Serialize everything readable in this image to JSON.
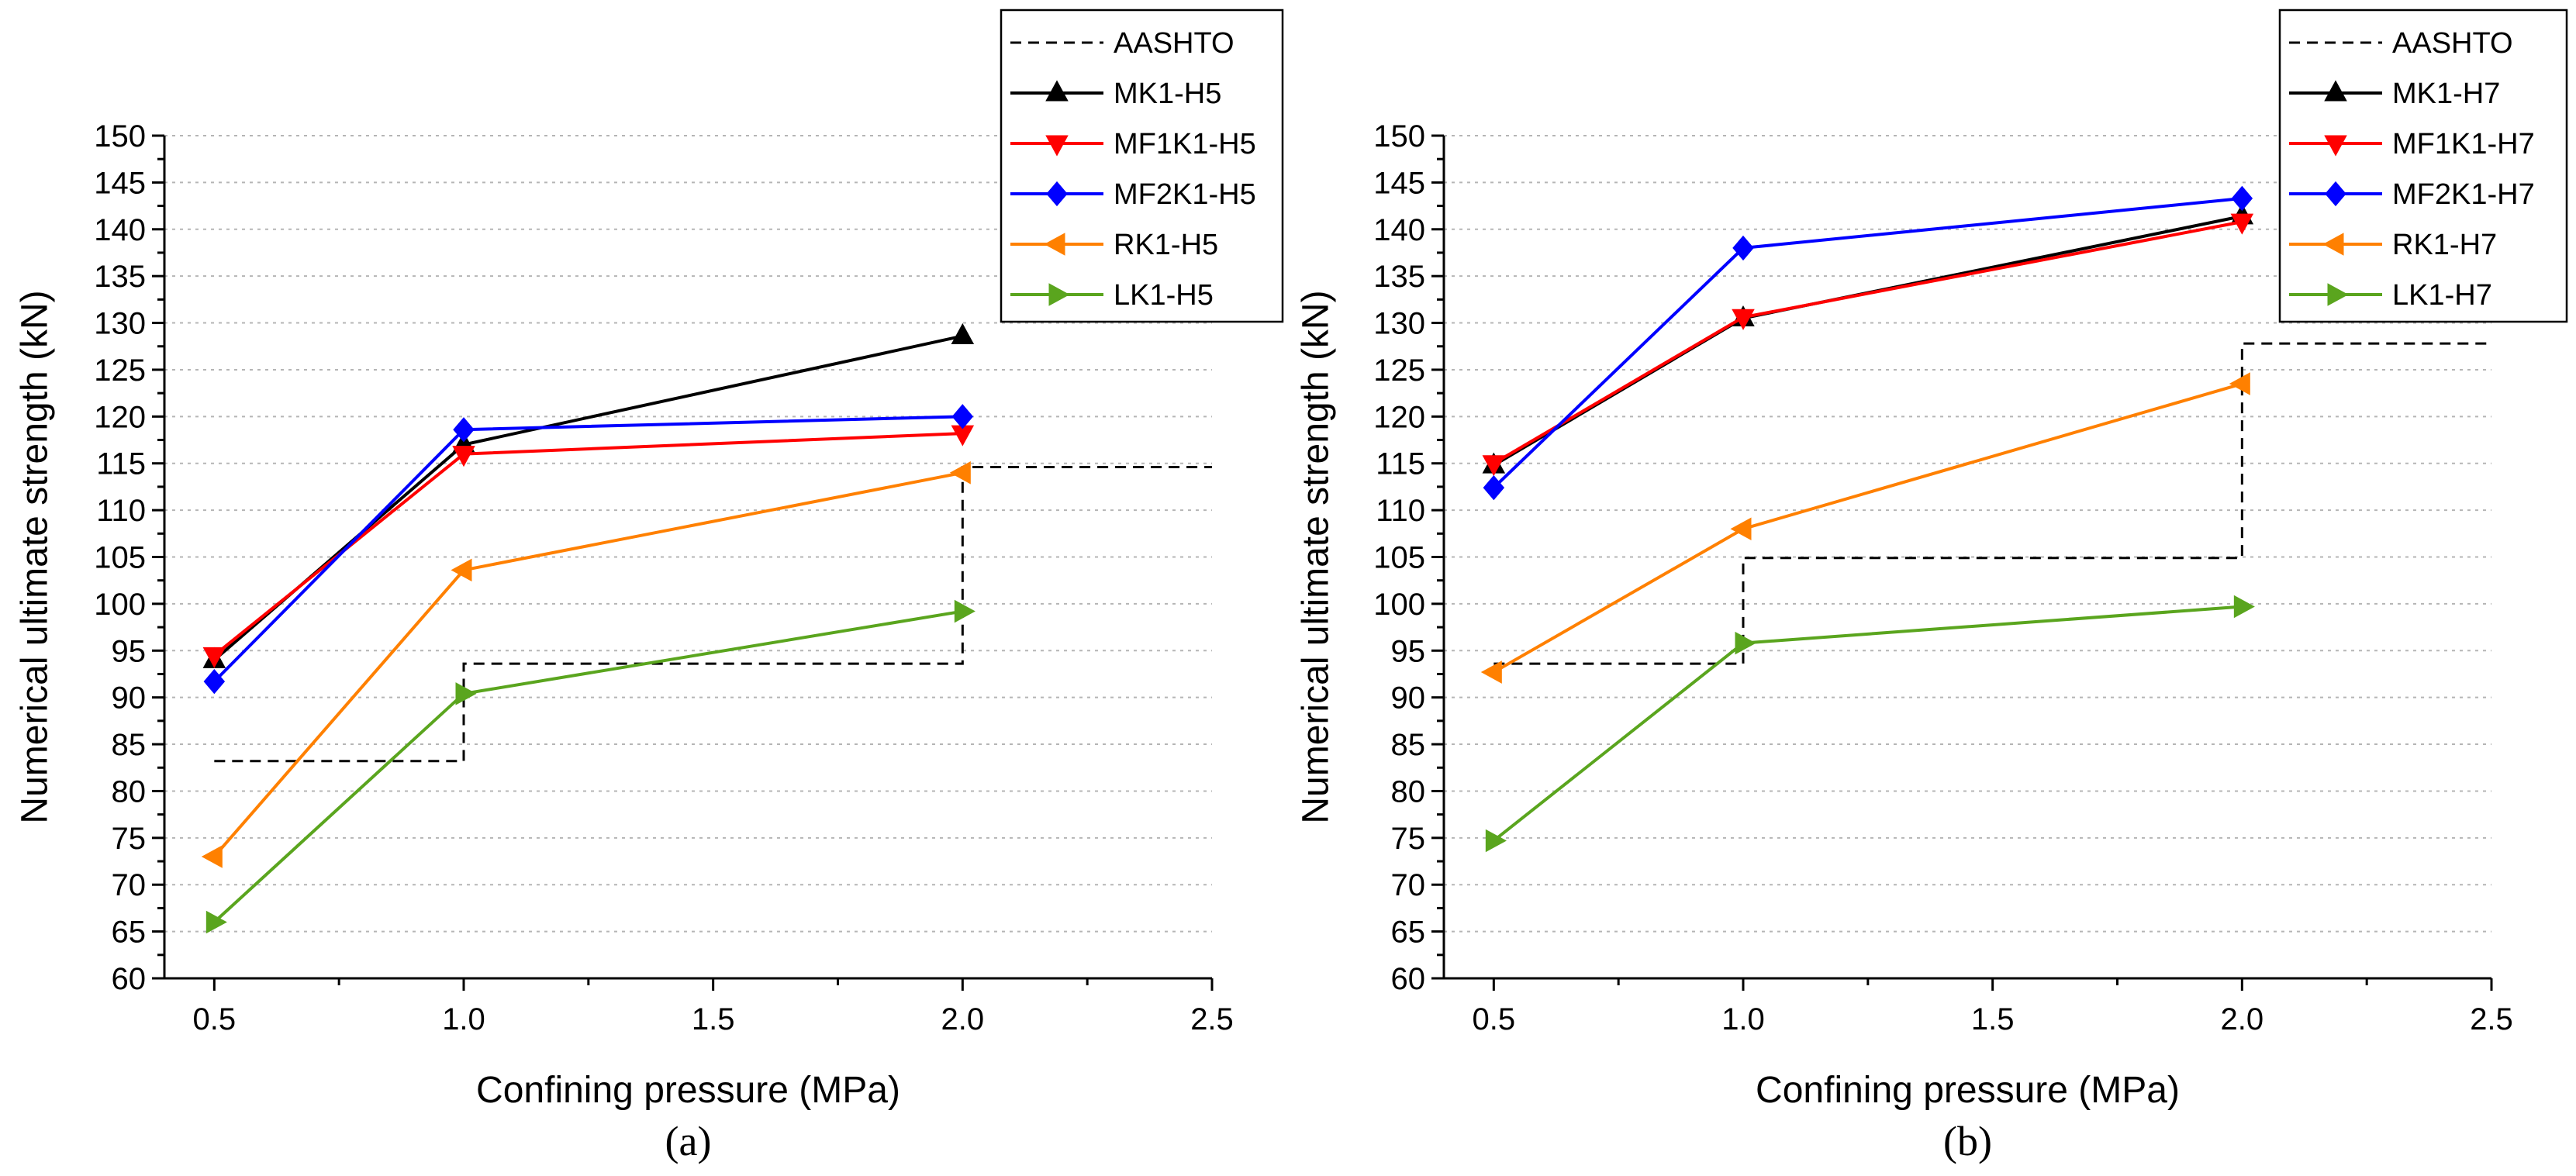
{
  "chart_data": [
    {
      "type": "line",
      "panel_label": "(a)",
      "xlabel": "Confining pressure (MPa)",
      "ylabel": "Numerical ultimate strength (kN)",
      "xlim": [
        0.4,
        2.5
      ],
      "ylim": [
        60,
        150
      ],
      "x_ticks": [
        0.5,
        1.0,
        1.5,
        2.0,
        2.5
      ],
      "x_tick_labels": [
        "0.5",
        "1.0",
        "1.5",
        "2.0",
        "2.5"
      ],
      "y_ticks": [
        60,
        65,
        70,
        75,
        80,
        85,
        90,
        95,
        100,
        105,
        110,
        115,
        120,
        125,
        130,
        135,
        140,
        145,
        150
      ],
      "y_tick_labels": [
        "60",
        "65",
        "70",
        "75",
        "80",
        "85",
        "90",
        "95",
        "100",
        "105",
        "110",
        "115",
        "120",
        "125",
        "130",
        "135",
        "140",
        "145",
        "150"
      ],
      "grid": true,
      "legend_position": "top-right",
      "aashto": {
        "name": "AASHTO",
        "color": "#000000",
        "style": "dashed",
        "x": [
          0.5,
          1.0,
          1.0,
          2.0,
          2.0,
          2.5
        ],
        "y": [
          83.2,
          83.2,
          93.6,
          93.6,
          114.6,
          114.6
        ]
      },
      "series": [
        {
          "name": "MK1-H5",
          "color": "#000000",
          "marker": "triangle-up",
          "x": [
            0.5,
            1.0,
            2.0
          ],
          "y": [
            94.0,
            117.0,
            128.6
          ]
        },
        {
          "name": "MF1K1-H5",
          "color": "#ff0000",
          "marker": "triangle-down",
          "x": [
            0.5,
            1.0,
            2.0
          ],
          "y": [
            94.5,
            116.0,
            118.2
          ]
        },
        {
          "name": "MF2K1-H5",
          "color": "#0000ff",
          "marker": "diamond",
          "x": [
            0.5,
            1.0,
            2.0
          ],
          "y": [
            91.7,
            118.6,
            120.0
          ]
        },
        {
          "name": "RK1-H5",
          "color": "#ff8000",
          "marker": "triangle-left",
          "x": [
            0.5,
            1.0,
            2.0
          ],
          "y": [
            73.0,
            103.6,
            114.0
          ]
        },
        {
          "name": "LK1-H5",
          "color": "#5aa51e",
          "marker": "triangle-right",
          "x": [
            0.5,
            1.0,
            2.0
          ],
          "y": [
            66.0,
            90.4,
            99.2
          ]
        }
      ]
    },
    {
      "type": "line",
      "panel_label": "(b)",
      "xlabel": "Confining pressure (MPa)",
      "ylabel": "Numerical ultimate strength (kN)",
      "xlim": [
        0.4,
        2.5
      ],
      "ylim": [
        60,
        150
      ],
      "x_ticks": [
        0.5,
        1.0,
        1.5,
        2.0,
        2.5
      ],
      "x_tick_labels": [
        "0.5",
        "1.0",
        "1.5",
        "2.0",
        "2.5"
      ],
      "y_ticks": [
        60,
        65,
        70,
        75,
        80,
        85,
        90,
        95,
        100,
        105,
        110,
        115,
        120,
        125,
        130,
        135,
        140,
        145,
        150
      ],
      "y_tick_labels": [
        "60",
        "65",
        "70",
        "75",
        "80",
        "85",
        "90",
        "95",
        "100",
        "105",
        "110",
        "115",
        "120",
        "125",
        "130",
        "135",
        "140",
        "145",
        "150"
      ],
      "grid": true,
      "legend_position": "top-right",
      "aashto": {
        "name": "AASHTO",
        "color": "#000000",
        "style": "dashed",
        "x": [
          0.5,
          1.0,
          1.0,
          2.0,
          2.0,
          2.5
        ],
        "y": [
          93.6,
          93.6,
          104.9,
          104.9,
          127.8,
          127.8
        ]
      },
      "series": [
        {
          "name": "MK1-H7",
          "color": "#000000",
          "marker": "triangle-up",
          "x": [
            0.5,
            1.0,
            2.0
          ],
          "y": [
            114.8,
            130.5,
            141.4
          ]
        },
        {
          "name": "MF1K1-H7",
          "color": "#ff0000",
          "marker": "triangle-down",
          "x": [
            0.5,
            1.0,
            2.0
          ],
          "y": [
            115.0,
            130.6,
            140.8
          ]
        },
        {
          "name": "MF2K1-H7",
          "color": "#0000ff",
          "marker": "diamond",
          "x": [
            0.5,
            1.0,
            2.0
          ],
          "y": [
            112.4,
            138.0,
            143.3
          ]
        },
        {
          "name": "RK1-H7",
          "color": "#ff8000",
          "marker": "triangle-left",
          "x": [
            0.5,
            1.0,
            2.0
          ],
          "y": [
            92.7,
            108.0,
            123.5
          ]
        },
        {
          "name": "LK1-H7",
          "color": "#5aa51e",
          "marker": "triangle-right",
          "x": [
            0.5,
            1.0,
            2.0
          ],
          "y": [
            74.7,
            95.8,
            99.7
          ]
        }
      ]
    }
  ]
}
